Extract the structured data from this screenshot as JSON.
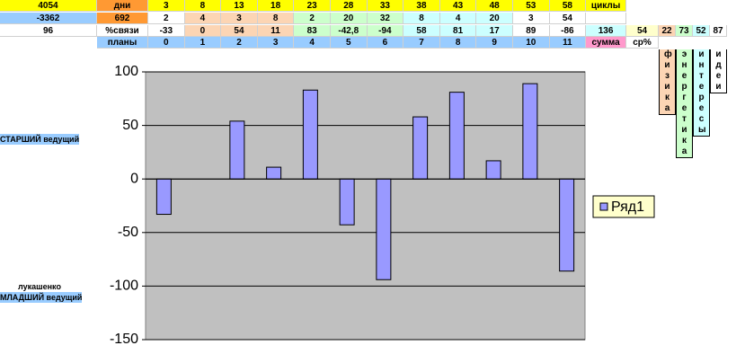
{
  "top_table": {
    "rows": [
      [
        "4054",
        "дни",
        "3",
        "8",
        "13",
        "18",
        "23",
        "28",
        "33",
        "38",
        "43",
        "48",
        "53",
        "58",
        "циклы"
      ],
      [
        "-3362",
        "692",
        "2",
        "4",
        "3",
        "8",
        "2",
        "20",
        "32",
        "8",
        "4",
        "20",
        "3",
        "54"
      ],
      [
        "96",
        "%связи",
        "-33",
        "0",
        "54",
        "11",
        "83",
        "-42,8",
        "-94",
        "58",
        "81",
        "17",
        "89",
        "-86",
        "136",
        "54",
        "22",
        "73",
        "52",
        "87"
      ],
      [
        "планы",
        "0",
        "1",
        "2",
        "3",
        "4",
        "5",
        "6",
        "7",
        "8",
        "9",
        "10",
        "11",
        "сумма",
        "ср%"
      ]
    ]
  },
  "vertical_labels": [
    "физика",
    "энергетика",
    "интересы",
    "идеи"
  ],
  "side_labels": {
    "senior": "СТАРШИЙ ведущий",
    "name": "лукашенко",
    "junior": "МЛАДШИЙ ведущий"
  },
  "chart_data": {
    "type": "bar",
    "series": [
      {
        "name": "Ряд1",
        "color": "#9999ff",
        "values": [
          -33,
          0,
          54,
          11,
          83,
          -42.8,
          -94,
          58,
          81,
          17,
          89,
          -86
        ]
      }
    ],
    "ylim": [
      -150,
      100
    ],
    "yticks": [
      -150,
      -100,
      -50,
      0,
      50,
      100
    ],
    "grid": true,
    "legend": "right"
  }
}
